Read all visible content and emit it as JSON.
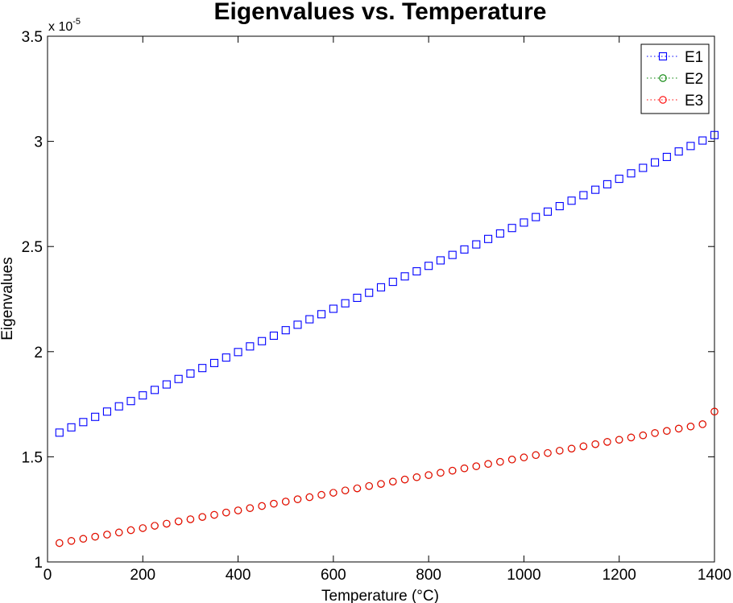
{
  "chart_data": {
    "type": "scatter",
    "title": "Eigenvalues vs. Temperature",
    "xlabel": "Temperature (°C)",
    "ylabel": "Eigenvalues",
    "exponent_base": "x 10",
    "exponent_power": "-5",
    "xlim": [
      0,
      1400
    ],
    "ylim": [
      1.0,
      3.5
    ],
    "y_scale_factor": 1e-05,
    "xticks": [
      0,
      200,
      400,
      600,
      800,
      1000,
      1200,
      1400
    ],
    "xtick_labels": [
      "0",
      "200",
      "400",
      "600",
      "800",
      "1000",
      "1200",
      "1400"
    ],
    "yticks": [
      1.0,
      1.5,
      2.0,
      2.5,
      3.0,
      3.5
    ],
    "ytick_labels": [
      "1",
      "1.5",
      "2",
      "2.5",
      "3",
      "3.5"
    ],
    "grid": false,
    "legend_position": "top-right",
    "x": [
      25,
      50,
      75,
      100,
      125,
      150,
      175,
      200,
      225,
      250,
      275,
      300,
      325,
      350,
      375,
      400,
      425,
      450,
      475,
      500,
      525,
      550,
      575,
      600,
      625,
      650,
      675,
      700,
      725,
      750,
      775,
      800,
      825,
      850,
      875,
      900,
      925,
      950,
      975,
      1000,
      1025,
      1050,
      1075,
      1100,
      1125,
      1150,
      1175,
      1200,
      1225,
      1250,
      1275,
      1300,
      1325,
      1350,
      1375,
      1400
    ],
    "series": [
      {
        "name": "E1",
        "color": "#0000ff",
        "marker": "square",
        "values": [
          1.615,
          1.64,
          1.665,
          1.69,
          1.715,
          1.74,
          1.765,
          1.792,
          1.818,
          1.844,
          1.87,
          1.896,
          1.922,
          1.946,
          1.972,
          1.998,
          2.025,
          2.05,
          2.076,
          2.102,
          2.128,
          2.154,
          2.178,
          2.204,
          2.23,
          2.256,
          2.28,
          2.306,
          2.332,
          2.358,
          2.382,
          2.408,
          2.434,
          2.46,
          2.486,
          2.51,
          2.536,
          2.562,
          2.588,
          2.614,
          2.64,
          2.666,
          2.692,
          2.718,
          2.744,
          2.77,
          2.796,
          2.822,
          2.848,
          2.874,
          2.9,
          2.926,
          2.952,
          2.978,
          3.004,
          3.03
        ]
      },
      {
        "name": "E2",
        "color": "#008000",
        "marker": "circle",
        "values": [
          1.09,
          1.1,
          1.11,
          1.12,
          1.13,
          1.14,
          1.151,
          1.161,
          1.172,
          1.182,
          1.193,
          1.203,
          1.214,
          1.224,
          1.235,
          1.245,
          1.256,
          1.266,
          1.277,
          1.287,
          1.298,
          1.308,
          1.319,
          1.329,
          1.34,
          1.35,
          1.361,
          1.371,
          1.382,
          1.392,
          1.403,
          1.413,
          1.424,
          1.434,
          1.445,
          1.455,
          1.466,
          1.476,
          1.487,
          1.497,
          1.508,
          1.518,
          1.529,
          1.539,
          1.55,
          1.56,
          1.571,
          1.581,
          1.592,
          1.602,
          1.613,
          1.623,
          1.634,
          1.644,
          1.655,
          1.715
        ]
      },
      {
        "name": "E3",
        "color": "#ff0000",
        "marker": "circle",
        "values": [
          1.09,
          1.1,
          1.11,
          1.12,
          1.13,
          1.14,
          1.151,
          1.161,
          1.172,
          1.182,
          1.193,
          1.203,
          1.214,
          1.224,
          1.235,
          1.245,
          1.256,
          1.266,
          1.277,
          1.287,
          1.298,
          1.308,
          1.319,
          1.329,
          1.34,
          1.35,
          1.361,
          1.371,
          1.382,
          1.392,
          1.403,
          1.413,
          1.424,
          1.434,
          1.445,
          1.455,
          1.466,
          1.476,
          1.487,
          1.497,
          1.508,
          1.518,
          1.529,
          1.539,
          1.55,
          1.56,
          1.571,
          1.581,
          1.592,
          1.602,
          1.613,
          1.623,
          1.634,
          1.644,
          1.655,
          1.715
        ]
      }
    ]
  }
}
